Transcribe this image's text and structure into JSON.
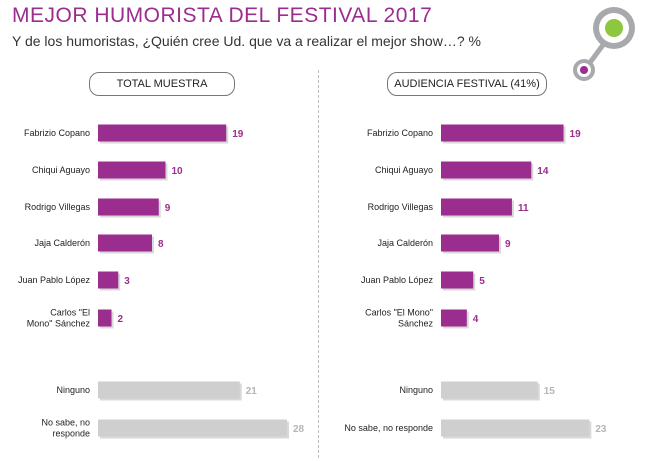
{
  "title": "MEJOR HUMORISTA DEL FESTIVAL 2017",
  "subtitle": "Y de los humoristas, ¿Quién cree Ud. que va a realizar el mejor show…? %",
  "colors": {
    "title": "#9b2d8f",
    "accent_bar": "#9b2d8f",
    "neutral_bar": "#cfcfcf",
    "neutral_value": "#b5b5b5",
    "logo_green": "#8dc63f",
    "logo_purple": "#9b2d8f",
    "logo_gray": "#a7a9ac"
  },
  "chart_data": [
    {
      "type": "bar",
      "orientation": "horizontal",
      "title": "TOTAL MUESTRA",
      "categories": [
        "Fabrizio Copano",
        "Chiqui Aguayo",
        "Rodrigo Villegas",
        "Jaja Calderón",
        "Juan Pablo López",
        "Carlos \"El Mono\" Sánchez",
        "Ninguno",
        "No sabe, no responde"
      ],
      "values": [
        19,
        10,
        9,
        8,
        3,
        2,
        21,
        28
      ],
      "highlight": [
        true,
        true,
        true,
        true,
        true,
        true,
        false,
        false
      ],
      "xlim": [
        0,
        28
      ],
      "grid": false
    },
    {
      "type": "bar",
      "orientation": "horizontal",
      "title": "AUDIENCIA FESTIVAL (41%)",
      "categories": [
        "Fabrizio Copano",
        "Chiqui Aguayo",
        "Rodrigo Villegas",
        "Jaja Calderón",
        "Juan Pablo López",
        "Carlos \"El Mono\" Sánchez",
        "Ninguno",
        "No sabe, no responde"
      ],
      "values": [
        19,
        14,
        11,
        9,
        5,
        4,
        15,
        23
      ],
      "highlight": [
        true,
        true,
        true,
        true,
        true,
        true,
        false,
        false
      ],
      "xlim": [
        0,
        23
      ],
      "grid": false
    }
  ]
}
